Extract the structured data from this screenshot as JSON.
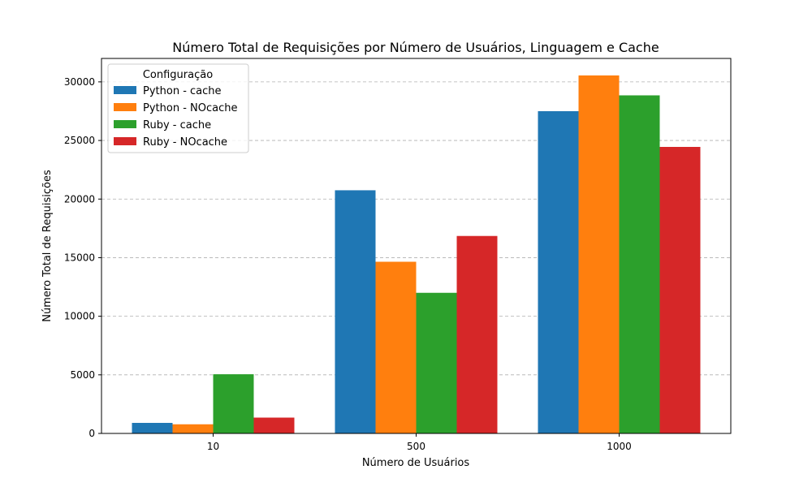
{
  "chart_data": {
    "type": "bar",
    "title": "Número Total de Requisições por Número de Usuários, Linguagem e Cache",
    "xlabel": "Número de Usuários",
    "ylabel": "Número Total de Requisições",
    "categories": [
      "10",
      "500",
      "1000"
    ],
    "ylim": [
      0,
      32000
    ],
    "yticks": [
      0,
      5000,
      10000,
      15000,
      20000,
      25000,
      30000
    ],
    "grid": "y-dashed",
    "legend": {
      "title": "Configuração",
      "placement": "top-left"
    },
    "series": [
      {
        "name": "Python - cache",
        "color": "#1f77b4",
        "values": [
          900,
          20750,
          27500
        ]
      },
      {
        "name": "Python - NOcache",
        "color": "#ff7f0e",
        "values": [
          780,
          14650,
          30550
        ]
      },
      {
        "name": "Ruby - cache",
        "color": "#2ca02c",
        "values": [
          5050,
          12000,
          28850
        ]
      },
      {
        "name": "Ruby - NOcache",
        "color": "#d62728",
        "values": [
          1350,
          16850,
          24450
        ]
      }
    ]
  }
}
